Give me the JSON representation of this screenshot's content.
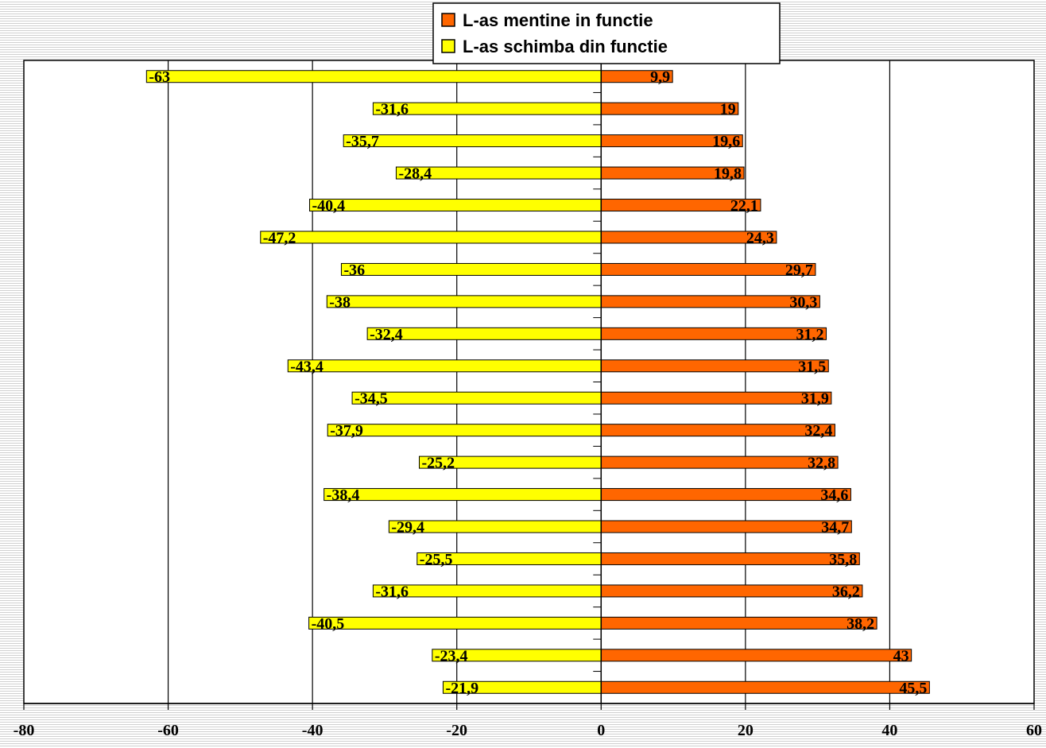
{
  "chart_data": {
    "type": "bar",
    "orientation": "horizontal",
    "diverging": true,
    "title": "",
    "xlabel": "",
    "ylabel": "",
    "xlim": [
      -80,
      60
    ],
    "x_ticks": [
      -80,
      -60,
      -40,
      -20,
      0,
      20,
      40,
      60
    ],
    "grid": "vertical",
    "legend_position": "top-center",
    "series": [
      {
        "name": "L-as mentine in functie",
        "color": "#ff6600",
        "values": [
          9.9,
          19,
          19.6,
          19.8,
          22.1,
          24.3,
          29.7,
          30.3,
          31.2,
          31.5,
          31.9,
          32.4,
          32.8,
          34.6,
          34.7,
          35.8,
          36.2,
          38.2,
          43,
          45.5
        ],
        "labels": [
          "9,9",
          "19",
          "19,6",
          "19,8",
          "22,1",
          "24,3",
          "29,7",
          "30,3",
          "31,2",
          "31,5",
          "31,9",
          "32,4",
          "32,8",
          "34,6",
          "34,7",
          "35,8",
          "36,2",
          "38,2",
          "43",
          "45,5"
        ]
      },
      {
        "name": "L-as schimba din functie",
        "color": "#ffff00",
        "values": [
          -63,
          -31.6,
          -35.7,
          -28.4,
          -40.4,
          -47.2,
          -36,
          -38,
          -32.4,
          -43.4,
          -34.5,
          -37.9,
          -25.2,
          -38.4,
          -29.4,
          -25.5,
          -31.6,
          -40.5,
          -23.4,
          -21.9
        ],
        "labels": [
          "-63",
          "-31,6",
          "-35,7",
          "-28,4",
          "-40,4",
          "-47,2",
          "-36",
          "-38",
          "-32,4",
          "-43,4",
          "-34,5",
          "-37,9",
          "-25,2",
          "-38,4",
          "-29,4",
          "-25,5",
          "-31,6",
          "-40,5",
          "-23,4",
          "-21,9"
        ]
      }
    ]
  }
}
